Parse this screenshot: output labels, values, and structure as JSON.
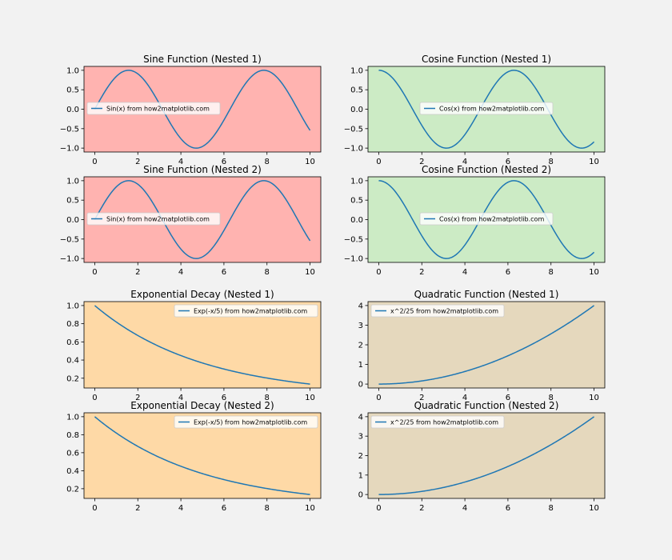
{
  "figure": {
    "background": "#f2f2f2",
    "line_color": "#1f77b4"
  },
  "chart_data": [
    {
      "type": "line",
      "title": "Sine Function (Nested 1)",
      "background": "#ffb3b0",
      "function": "sin",
      "x_range": [
        0,
        10
      ],
      "xlim": [
        -0.5,
        10.5
      ],
      "ylim": [
        -1.1,
        1.1
      ],
      "xticks": [
        0,
        2,
        4,
        6,
        8,
        10
      ],
      "yticks": [
        1.0,
        0.5,
        0.0,
        -0.5,
        -1.0
      ],
      "xtick_labels": [
        "0",
        "2",
        "4",
        "6",
        "8",
        "10"
      ],
      "ytick_labels": [
        "1.0",
        "0.5",
        "0.0",
        "−0.5",
        "−1.0"
      ],
      "series": [
        {
          "name": "Sin(x) from how2matplotlib.com"
        }
      ],
      "legend": "center-left"
    },
    {
      "type": "line",
      "title": "Cosine Function (Nested 1)",
      "background": "#ccebc5",
      "function": "cos",
      "x_range": [
        0,
        10
      ],
      "xlim": [
        -0.5,
        10.5
      ],
      "ylim": [
        -1.1,
        1.1
      ],
      "xticks": [
        0,
        2,
        4,
        6,
        8,
        10
      ],
      "yticks": [
        1.0,
        0.5,
        0.0,
        -0.5,
        -1.0
      ],
      "xtick_labels": [
        "0",
        "2",
        "4",
        "6",
        "8",
        "10"
      ],
      "ytick_labels": [
        "1.0",
        "0.5",
        "0.0",
        "−0.5",
        "−1.0"
      ],
      "series": [
        {
          "name": "Cos(x) from how2matplotlib.com"
        }
      ],
      "legend": "center"
    },
    {
      "type": "line",
      "title": "Sine Function (Nested 2)",
      "background": "#ffb3b0",
      "function": "sin",
      "x_range": [
        0,
        10
      ],
      "xlim": [
        -0.5,
        10.5
      ],
      "ylim": [
        -1.1,
        1.1
      ],
      "xticks": [
        0,
        2,
        4,
        6,
        8,
        10
      ],
      "yticks": [
        1.0,
        0.5,
        0.0,
        -0.5,
        -1.0
      ],
      "xtick_labels": [
        "0",
        "2",
        "4",
        "6",
        "8",
        "10"
      ],
      "ytick_labels": [
        "1.0",
        "0.5",
        "0.0",
        "−0.5",
        "−1.0"
      ],
      "series": [
        {
          "name": "Sin(x) from how2matplotlib.com"
        }
      ],
      "legend": "center-left"
    },
    {
      "type": "line",
      "title": "Cosine Function (Nested 2)",
      "background": "#ccebc5",
      "function": "cos",
      "x_range": [
        0,
        10
      ],
      "xlim": [
        -0.5,
        10.5
      ],
      "ylim": [
        -1.1,
        1.1
      ],
      "xticks": [
        0,
        2,
        4,
        6,
        8,
        10
      ],
      "yticks": [
        1.0,
        0.5,
        0.0,
        -0.5,
        -1.0
      ],
      "xtick_labels": [
        "0",
        "2",
        "4",
        "6",
        "8",
        "10"
      ],
      "ytick_labels": [
        "1.0",
        "0.5",
        "0.0",
        "−0.5",
        "−1.0"
      ],
      "series": [
        {
          "name": "Cos(x) from how2matplotlib.com"
        }
      ],
      "legend": "center"
    },
    {
      "type": "line",
      "title": "Exponential Decay (Nested 1)",
      "background": "#fed9a6",
      "function": "exp(-x/5)",
      "x_range": [
        0,
        10
      ],
      "xlim": [
        -0.5,
        10.5
      ],
      "ylim": [
        0.0923,
        1.0433
      ],
      "xticks": [
        0,
        2,
        4,
        6,
        8,
        10
      ],
      "yticks": [
        1.0,
        0.8,
        0.6,
        0.4,
        0.2
      ],
      "xtick_labels": [
        "0",
        "2",
        "4",
        "6",
        "8",
        "10"
      ],
      "ytick_labels": [
        "1.0",
        "0.8",
        "0.6",
        "0.4",
        "0.2"
      ],
      "series": [
        {
          "name": "Exp(-x/5) from how2matplotlib.com"
        }
      ],
      "legend": "upper right"
    },
    {
      "type": "line",
      "title": "Quadratic Function (Nested 1)",
      "background": "#e5d8bd",
      "function": "x^2/25",
      "x_range": [
        0,
        10
      ],
      "xlim": [
        -0.5,
        10.5
      ],
      "ylim": [
        -0.2,
        4.2
      ],
      "xticks": [
        0,
        2,
        4,
        6,
        8,
        10
      ],
      "yticks": [
        4,
        3,
        2,
        1,
        0
      ],
      "xtick_labels": [
        "0",
        "2",
        "4",
        "6",
        "8",
        "10"
      ],
      "ytick_labels": [
        "4",
        "3",
        "2",
        "1",
        "0"
      ],
      "series": [
        {
          "name": "x^2/25 from how2matplotlib.com"
        }
      ],
      "legend": "upper left"
    },
    {
      "type": "line",
      "title": "Exponential Decay (Nested 2)",
      "background": "#fed9a6",
      "function": "exp(-x/5)",
      "x_range": [
        0,
        10
      ],
      "xlim": [
        -0.5,
        10.5
      ],
      "ylim": [
        0.0923,
        1.0433
      ],
      "xticks": [
        0,
        2,
        4,
        6,
        8,
        10
      ],
      "yticks": [
        1.0,
        0.8,
        0.6,
        0.4,
        0.2
      ],
      "xtick_labels": [
        "0",
        "2",
        "4",
        "6",
        "8",
        "10"
      ],
      "ytick_labels": [
        "1.0",
        "0.8",
        "0.6",
        "0.4",
        "0.2"
      ],
      "series": [
        {
          "name": "Exp(-x/5) from how2matplotlib.com"
        }
      ],
      "legend": "upper right"
    },
    {
      "type": "line",
      "title": "Quadratic Function (Nested 2)",
      "background": "#e5d8bd",
      "function": "x^2/25",
      "x_range": [
        0,
        10
      ],
      "xlim": [
        -0.5,
        10.5
      ],
      "ylim": [
        -0.2,
        4.2
      ],
      "xticks": [
        0,
        2,
        4,
        6,
        8,
        10
      ],
      "yticks": [
        4,
        3,
        2,
        1,
        0
      ],
      "xtick_labels": [
        "0",
        "2",
        "4",
        "6",
        "8",
        "10"
      ],
      "ytick_labels": [
        "4",
        "3",
        "2",
        "1",
        "0"
      ],
      "series": [
        {
          "name": "x^2/25 from how2matplotlib.com"
        }
      ],
      "legend": "upper left"
    }
  ]
}
